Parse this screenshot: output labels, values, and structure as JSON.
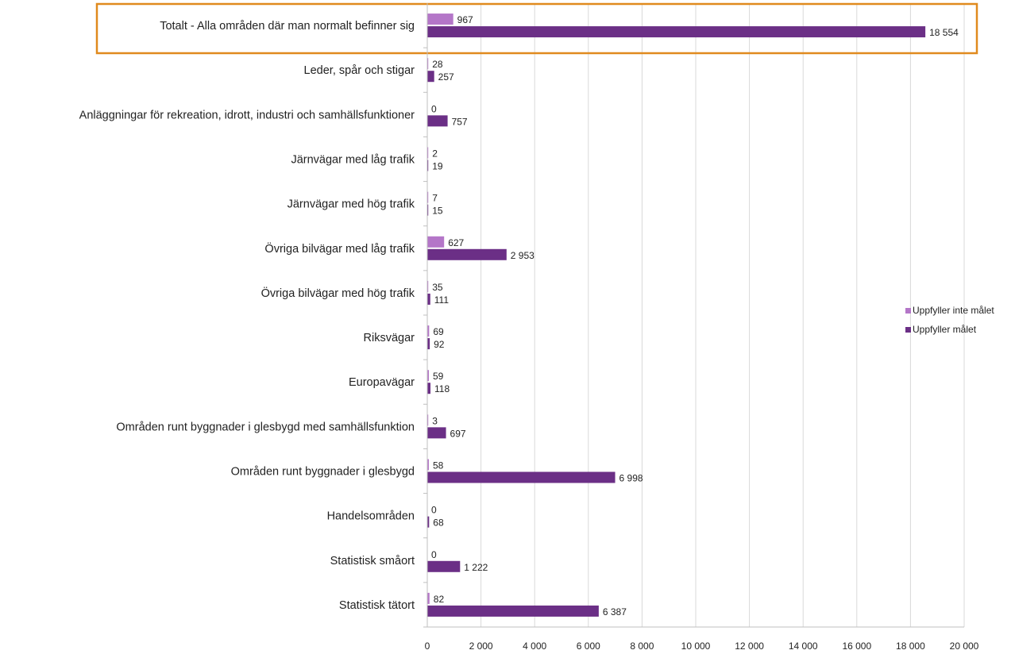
{
  "chart_data": {
    "type": "bar",
    "orientation": "horizontal",
    "categories": [
      "Totalt - Alla områden där man normalt befinner sig",
      "Leder, spår och stigar",
      "Anläggningar för rekreation, idrott, industri och samhällsfunktioner",
      "Järnvägar med låg trafik",
      "Järnvägar med hög trafik",
      "Övriga bilvägar med låg trafik",
      "Övriga bilvägar med hög trafik",
      "Riksvägar",
      "Europavägar",
      "Områden runt byggnader i glesbygd med samhällsfunktion",
      "Områden runt byggnader i glesbygd",
      "Handelsområden",
      "Statistisk småort",
      "Statistisk tätort"
    ],
    "series": [
      {
        "name": "Uppfyller inte målet",
        "color": "#b476c8",
        "values": [
          967,
          28,
          0,
          2,
          7,
          627,
          35,
          69,
          59,
          3,
          58,
          0,
          0,
          82
        ],
        "labels": [
          "967",
          "28",
          "0",
          "2",
          "7",
          "627",
          "35",
          "69",
          "59",
          "3",
          "58",
          "0",
          "0",
          "82"
        ]
      },
      {
        "name": "Uppfyller målet",
        "color": "#6b2f86",
        "values": [
          18554,
          257,
          757,
          19,
          15,
          2953,
          111,
          92,
          118,
          697,
          6998,
          68,
          1222,
          6387
        ],
        "labels": [
          "18 554",
          "257",
          "757",
          "19",
          "15",
          "2 953",
          "111",
          "92",
          "118",
          "697",
          "6 998",
          "68",
          "1 222",
          "6 387"
        ]
      }
    ],
    "xlim": [
      0,
      20000
    ],
    "xticks": [
      0,
      2000,
      4000,
      6000,
      8000,
      10000,
      12000,
      14000,
      16000,
      18000,
      20000
    ],
    "xtick_labels": [
      "0",
      "2 000",
      "4 000",
      "6 000",
      "8 000",
      "10 000",
      "12 000",
      "14 000",
      "16 000",
      "18 000",
      "20 000"
    ],
    "grid": "vertical",
    "legend_position": "right",
    "highlight_color": "#e08a1e"
  }
}
